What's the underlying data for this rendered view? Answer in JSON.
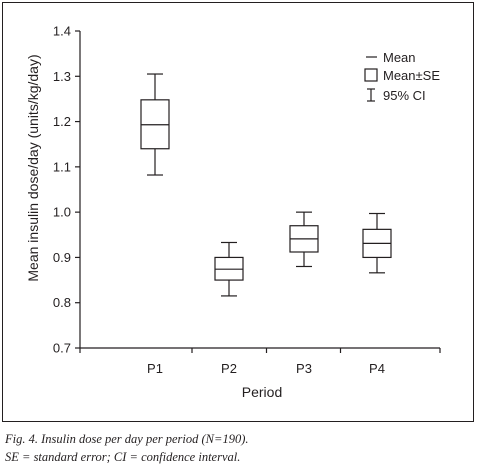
{
  "chart_data": {
    "type": "box",
    "xlabel": "Period",
    "ylabel": "Mean insulin dose/day (units/kg/day)",
    "ylim": [
      0.7,
      1.4
    ],
    "yticks": [
      "0.7",
      "0.8",
      "0.9",
      "1.0",
      "1.1",
      "1.2",
      "1.3",
      "1.4"
    ],
    "categories": [
      "P1",
      "P2",
      "P3",
      "P4"
    ],
    "mean": [
      1.193,
      0.874,
      0.941,
      0.931
    ],
    "se_low": [
      1.14,
      0.85,
      0.912,
      0.9
    ],
    "se_high": [
      1.248,
      0.9,
      0.97,
      0.962
    ],
    "ci_low": [
      1.082,
      0.815,
      0.88,
      0.866
    ],
    "ci_high": [
      1.305,
      0.933,
      1.0,
      0.997
    ],
    "legend": {
      "mean": "Mean",
      "se": "Mean±SE",
      "ci": "95% CI"
    },
    "legend_position": "top-right",
    "grid": false
  },
  "caption": {
    "line1": "Fig. 4. Insulin dose per day per period (N=190).",
    "line2": "SE = standard error; CI = confidence interval."
  }
}
